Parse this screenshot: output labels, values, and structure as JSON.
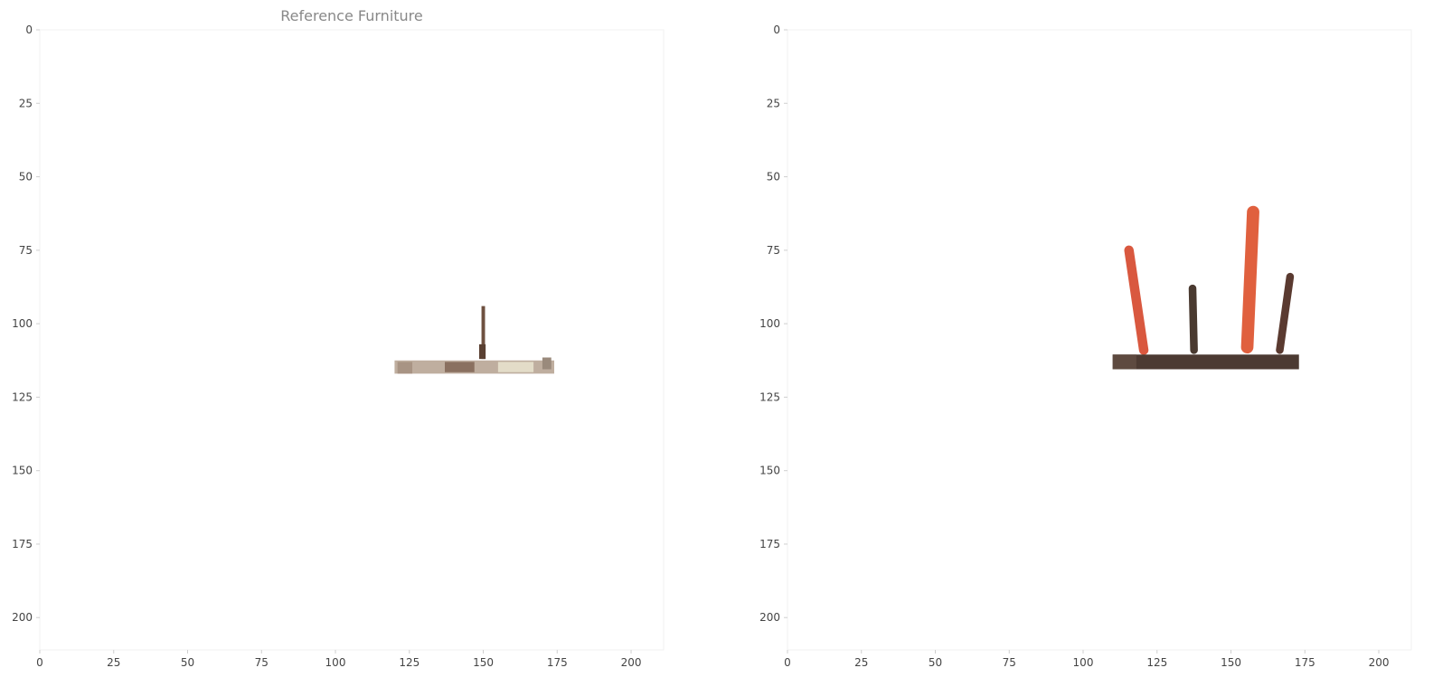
{
  "chart_data": [
    {
      "type": "image",
      "title": "Reference Furniture",
      "xlim": [
        0,
        211
      ],
      "ylim": [
        211,
        0
      ],
      "x_ticks": [
        0,
        25,
        50,
        75,
        100,
        125,
        150,
        175,
        200
      ],
      "y_ticks": [
        0,
        25,
        50,
        75,
        100,
        125,
        150,
        175,
        200
      ],
      "x_tick_labels": [
        "0",
        "25",
        "50",
        "75",
        "100",
        "125",
        "150",
        "175",
        "200"
      ],
      "y_tick_labels": [
        "0",
        "25",
        "50",
        "75",
        "100",
        "125",
        "150",
        "175",
        "200"
      ],
      "grid": false,
      "objects": [
        {
          "shape": "rect",
          "x": [
            120,
            174
          ],
          "y": [
            112.5,
            117
          ],
          "color": "#bfae9f"
        },
        {
          "shape": "rect",
          "x": [
            137,
            147
          ],
          "y": [
            113,
            116.5
          ],
          "color": "#8a7060"
        },
        {
          "shape": "rect",
          "x": [
            155,
            167
          ],
          "y": [
            113,
            116.5
          ],
          "color": "#e3dcc8"
        },
        {
          "shape": "rect",
          "x": [
            121,
            126
          ],
          "y": [
            113,
            117
          ],
          "color": "#a89484"
        },
        {
          "shape": "rect",
          "x": [
            149.4,
            150.6
          ],
          "y": [
            94,
            112
          ],
          "color": "#6e5040"
        },
        {
          "shape": "rect",
          "x": [
            148.6,
            150.8
          ],
          "y": [
            107,
            112
          ],
          "color": "#5a4032"
        },
        {
          "shape": "rect",
          "x": [
            170,
            173
          ],
          "y": [
            111.5,
            115.5
          ],
          "color": "#9a8a7c"
        }
      ]
    },
    {
      "type": "image",
      "title": "",
      "xlim": [
        0,
        211
      ],
      "ylim": [
        211,
        0
      ],
      "x_ticks": [
        0,
        25,
        50,
        75,
        100,
        125,
        150,
        175,
        200
      ],
      "y_ticks": [
        0,
        25,
        50,
        75,
        100,
        125,
        150,
        175,
        200
      ],
      "x_tick_labels": [
        "0",
        "25",
        "50",
        "75",
        "100",
        "125",
        "150",
        "175",
        "200"
      ],
      "y_tick_labels": [
        "0",
        "25",
        "50",
        "75",
        "100",
        "125",
        "150",
        "175",
        "200"
      ],
      "grid": false,
      "objects": [
        {
          "shape": "line",
          "x": [
            115.5,
            120.5
          ],
          "y": [
            75,
            109
          ],
          "width": 3.2,
          "color": "#d9583f"
        },
        {
          "shape": "line",
          "x": [
            137,
            137.5
          ],
          "y": [
            88,
            109
          ],
          "width": 2.6,
          "color": "#4a3a30"
        },
        {
          "shape": "line",
          "x": [
            157.5,
            155.5
          ],
          "y": [
            62,
            108
          ],
          "width": 4.2,
          "color": "#e0603e"
        },
        {
          "shape": "line",
          "x": [
            170,
            166.5
          ],
          "y": [
            84,
            109
          ],
          "width": 2.6,
          "color": "#5a3a30"
        },
        {
          "shape": "rect",
          "x": [
            110,
            173
          ],
          "y": [
            110.5,
            115.5
          ],
          "color": "#4c3a32"
        },
        {
          "shape": "rect",
          "x": [
            110,
            118
          ],
          "y": [
            110.5,
            115.5
          ],
          "color": "#5e4a40"
        }
      ]
    }
  ]
}
